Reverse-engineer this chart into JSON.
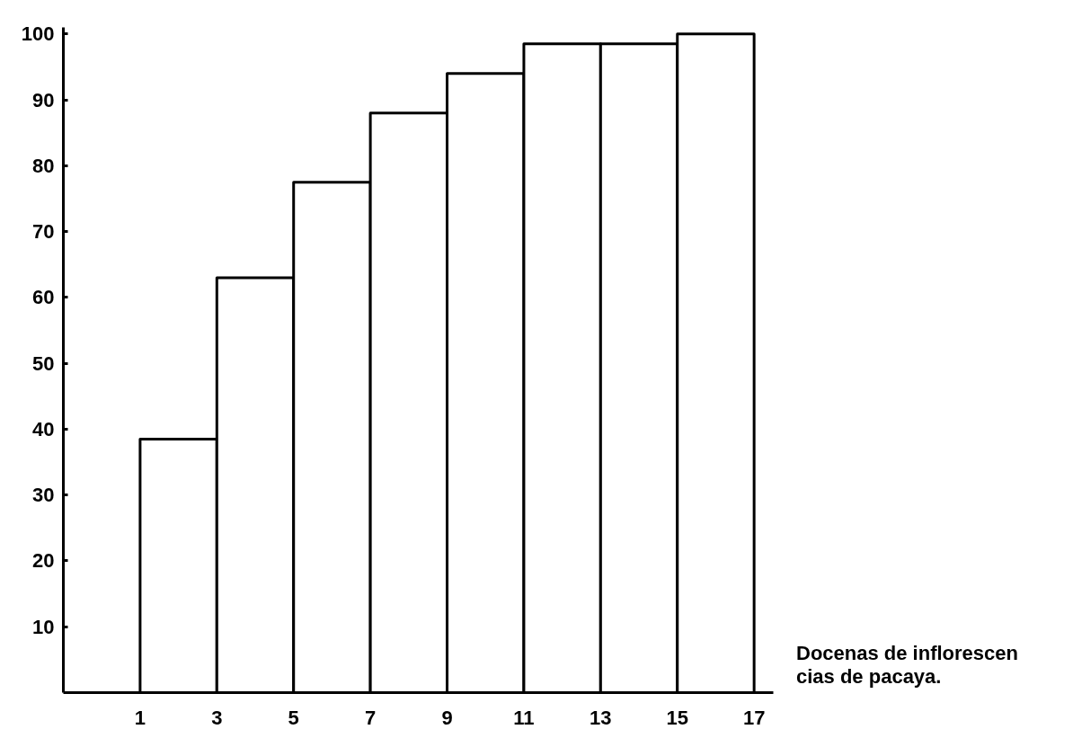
{
  "chart_data": {
    "type": "histogram",
    "xlabel": "Docenas de inflorescen\ncias de pacaya.",
    "bins": [
      1,
      3,
      5,
      7,
      9,
      11,
      13,
      15,
      17
    ],
    "values": [
      38.5,
      63,
      77.5,
      88,
      94,
      98.5,
      98.5,
      100
    ],
    "color": "#ffffff",
    "xlim": [
      -1,
      17.5
    ],
    "ylim": [
      0,
      101
    ],
    "xticks": [
      1,
      3,
      5,
      7,
      9,
      11,
      13,
      15,
      17
    ],
    "yticks": [
      10,
      20,
      30,
      40,
      50,
      60,
      70,
      80,
      90,
      100
    ],
    "grid": false
  }
}
